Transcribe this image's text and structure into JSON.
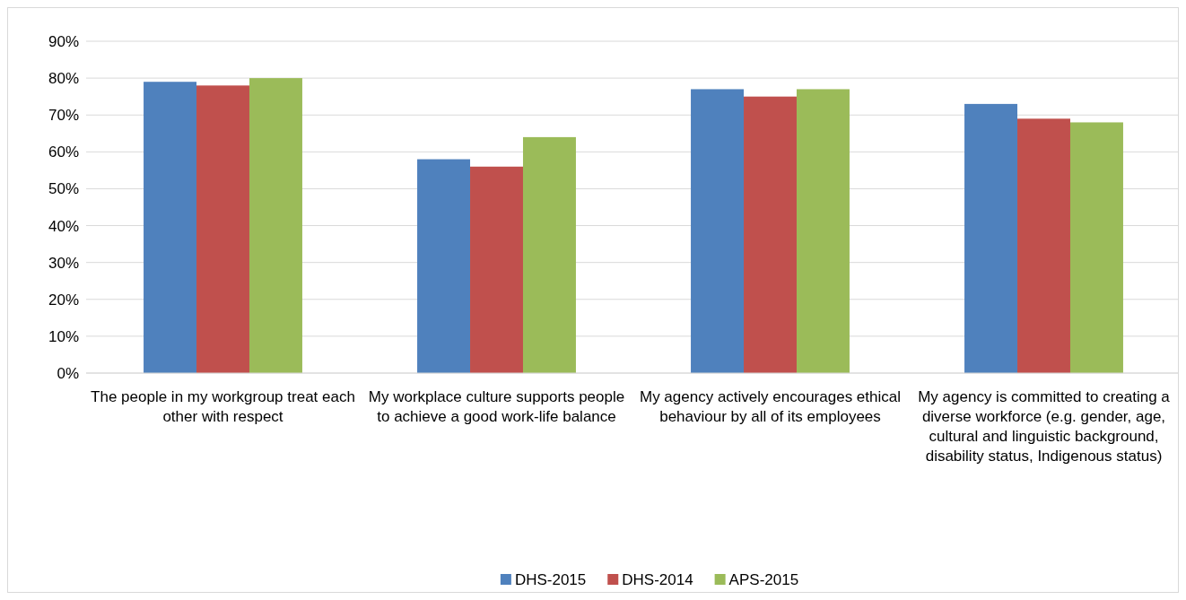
{
  "chart_data": {
    "type": "bar",
    "categories": [
      "The people in my workgroup treat each other with respect",
      "My workplace culture supports people to achieve a good work-life balance",
      "My agency actively encourages ethical behaviour by all of its employees",
      "My agency is committed to creating a diverse workforce (e.g. gender, age, cultural and linguistic background, disability status, Indigenous status)"
    ],
    "series": [
      {
        "name": "DHS-2015",
        "color": "#4f81bd",
        "values": [
          79,
          58,
          77,
          73
        ]
      },
      {
        "name": "DHS-2014",
        "color": "#c0504d",
        "values": [
          78,
          56,
          75,
          69
        ]
      },
      {
        "name": "APS-2015",
        "color": "#9bbb59",
        "values": [
          80,
          64,
          77,
          68
        ]
      }
    ],
    "ylim": [
      0,
      90
    ],
    "yticks": [
      {
        "value": 0,
        "label": "0%"
      },
      {
        "value": 10,
        "label": "10%"
      },
      {
        "value": 20,
        "label": "20%"
      },
      {
        "value": 30,
        "label": "30%"
      },
      {
        "value": 40,
        "label": "40%"
      },
      {
        "value": 50,
        "label": "50%"
      },
      {
        "value": 60,
        "label": "60%"
      },
      {
        "value": 70,
        "label": "70%"
      },
      {
        "value": 80,
        "label": "80%"
      },
      {
        "value": 90,
        "label": "90%"
      }
    ],
    "grid": "y",
    "legend": "bottom"
  }
}
